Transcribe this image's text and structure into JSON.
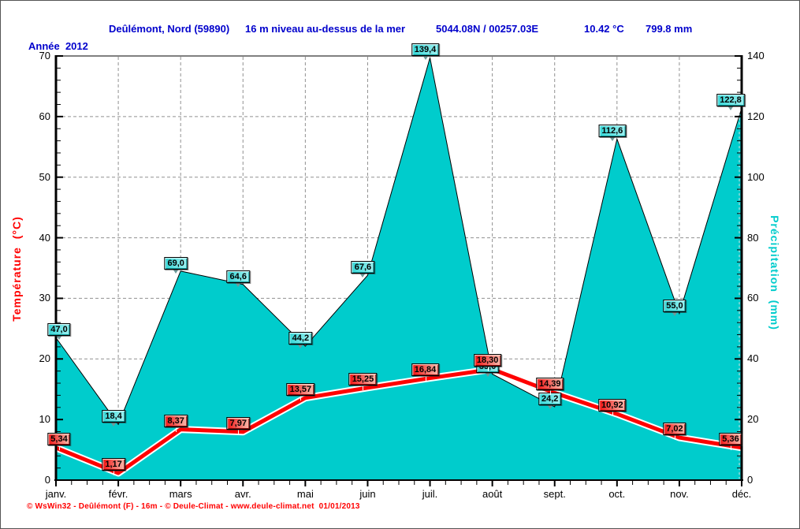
{
  "header": {
    "station": "Deûlémont, Nord (59890)",
    "altitude": "16 m niveau au-dessus de la mer",
    "coordinates": "5044.08N / 00257.03E",
    "mean_temperature": "10.42 °C",
    "total_precipitation": "799.8 mm"
  },
  "year_label": "Année  2012",
  "footer": "© WsWin32 - Deûlémont (F) - 16m - © Deule-Climat - www.deule-climat.net  01/01/2013",
  "colors": {
    "header_text": "#0000cc",
    "precip_fill": "#00cccc",
    "temp_line": "#ff0000",
    "grid": "#909090",
    "footer_text": "#ff0000"
  },
  "chart_data": {
    "type": "area+line climograph",
    "title": "Deûlémont, Nord (59890) — Année 2012",
    "categories": [
      "janv.",
      "févr.",
      "mars",
      "avr.",
      "mai",
      "juin",
      "juil.",
      "août",
      "sept.",
      "oct.",
      "nov.",
      "déc."
    ],
    "series": [
      {
        "name": "Précipitation",
        "unit": "mm",
        "type": "area",
        "color": "#00cccc",
        "values": [
          47.0,
          18.4,
          69.0,
          64.6,
          44.2,
          67.6,
          139.4,
          35.0,
          24.2,
          112.6,
          55.0,
          122.8
        ],
        "labels": [
          "47,0",
          "18,4",
          "69,0",
          "64,6",
          "44,2",
          "67,6",
          "139,4",
          "35,0",
          "24,2",
          "112,6",
          "55,0",
          "122,8"
        ]
      },
      {
        "name": "Température",
        "unit": "°C",
        "type": "line",
        "color": "#ff0000",
        "values": [
          5.34,
          1.17,
          8.37,
          7.97,
          13.57,
          15.25,
          16.84,
          18.3,
          14.39,
          10.92,
          7.02,
          5.36
        ],
        "labels": [
          "5,34",
          "1,17",
          "8,37",
          "7,97",
          "13,57",
          "15,25",
          "16,84",
          "18,30",
          "14,39",
          "10,92",
          "7,02",
          "5,36"
        ]
      }
    ],
    "axes": {
      "left": {
        "label": "Température  (°C)",
        "min": 0,
        "max": 70,
        "ticks": [
          0,
          10,
          20,
          30,
          40,
          50,
          60,
          70
        ],
        "minor_step": 2
      },
      "right": {
        "label": "Précipitation  (mm)",
        "min": 0,
        "max": 140,
        "ticks": [
          0,
          20,
          40,
          60,
          80,
          100,
          120,
          140
        ],
        "minor_step": 4
      }
    },
    "grid": true,
    "legend": "none"
  }
}
